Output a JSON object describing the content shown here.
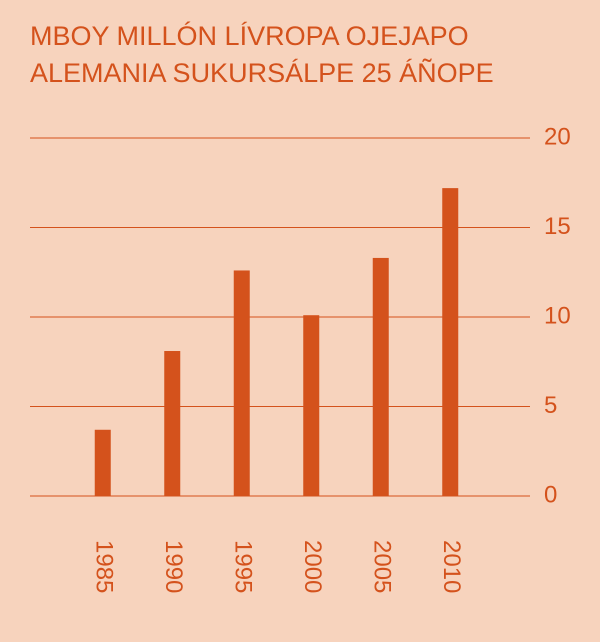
{
  "chart_data": {
    "type": "bar",
    "title": [
      "MBOY MILLÓN LÍVROPA OJEJAPO",
      "ALEMANIA SUKURSÁLPE 25 ÁÑOPE"
    ],
    "categories": [
      "1985",
      "1990",
      "1995",
      "2000",
      "2005",
      "2010"
    ],
    "values": [
      3.7,
      8.1,
      12.6,
      10.1,
      13.3,
      17.2
    ],
    "color": "#d4521c",
    "ylim": [
      0,
      20
    ],
    "yticks": [
      0,
      5,
      10,
      15,
      20
    ],
    "grid": true
  }
}
